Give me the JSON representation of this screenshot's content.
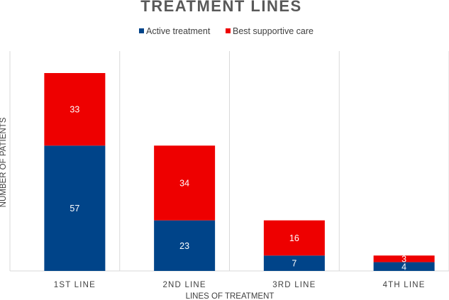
{
  "chart_data": {
    "type": "bar",
    "stacked": true,
    "title": "TREATMENT LINES",
    "xlabel": "LINES OF TREATMENT",
    "ylabel": "NUMBER OF PATIENTS",
    "categories": [
      "1ST LINE",
      "2ND LINE",
      "3RD LINE",
      "4TH LINE"
    ],
    "series": [
      {
        "name": "Active treatment",
        "color": "#004489",
        "values": [
          57,
          23,
          7,
          4
        ]
      },
      {
        "name": "Best supportive care",
        "color": "#ee0000",
        "values": [
          33,
          34,
          16,
          3
        ]
      }
    ],
    "ylim": [
      0,
      100
    ],
    "legend": "top",
    "grid": "vertical category separators"
  }
}
